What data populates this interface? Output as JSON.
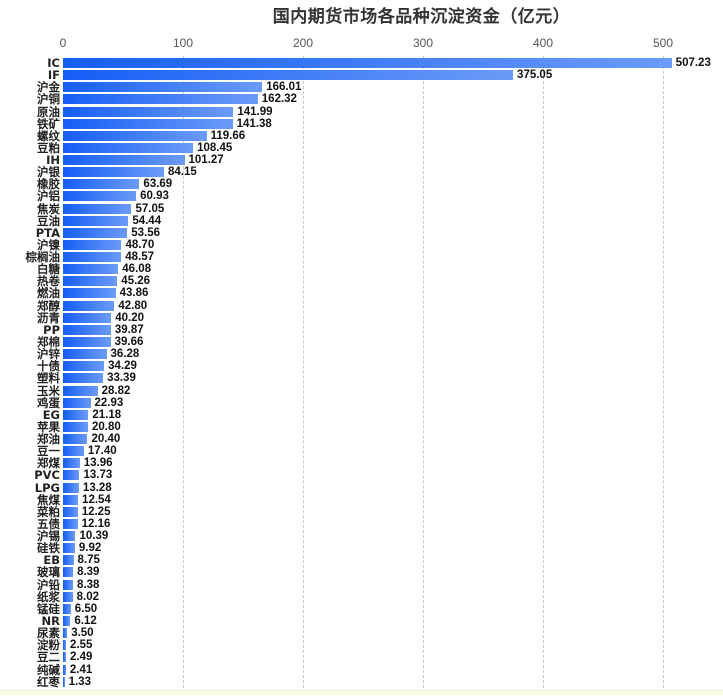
{
  "title": "国内期货市场各品种沉淀资金（亿元）",
  "axis": {
    "ticks": [
      "0",
      "100",
      "200",
      "300",
      "400",
      "500"
    ]
  },
  "chart_data": {
    "type": "bar",
    "orientation": "horizontal",
    "title": "国内期货市场各品种沉淀资金（亿元）",
    "xlabel": "",
    "ylabel": "",
    "xlim": [
      0,
      550
    ],
    "grid": true,
    "grid_style": "dashed vertical",
    "x_ticks": [
      0,
      100,
      200,
      300,
      400,
      500
    ],
    "bar_color_gradient": [
      "#155ef6",
      "#6b9bf7"
    ],
    "categories": [
      "IC",
      "IF",
      "沪金",
      "沪铜",
      "原油",
      "铁矿",
      "螺纹",
      "豆粕",
      "IH",
      "沪银",
      "橡胶",
      "沪铝",
      "焦炭",
      "豆油",
      "PTA",
      "沪镍",
      "棕榈油",
      "白糖",
      "热卷",
      "燃油",
      "郑醇",
      "沥青",
      "PP",
      "郑棉",
      "沪锌",
      "十债",
      "塑料",
      "玉米",
      "鸡蛋",
      "EG",
      "苹果",
      "郑油",
      "豆一",
      "郑煤",
      "PVC",
      "LPG",
      "焦煤",
      "菜粕",
      "五债",
      "沪锡",
      "硅铁",
      "EB",
      "玻璃",
      "沪铅",
      "纸浆",
      "锰硅",
      "NR",
      "尿素",
      "淀粉",
      "豆二",
      "纯碱",
      "红枣"
    ],
    "values": [
      507.23,
      375.05,
      166.01,
      162.32,
      141.99,
      141.38,
      119.66,
      108.45,
      101.27,
      84.15,
      63.69,
      60.93,
      57.05,
      54.44,
      53.56,
      48.7,
      48.57,
      46.08,
      45.26,
      43.86,
      42.8,
      40.2,
      39.87,
      39.66,
      36.28,
      34.29,
      33.39,
      28.82,
      22.93,
      21.18,
      20.8,
      20.4,
      17.4,
      13.96,
      13.73,
      13.28,
      12.54,
      12.25,
      12.16,
      10.39,
      9.92,
      8.75,
      8.39,
      8.38,
      8.02,
      6.5,
      6.12,
      3.5,
      2.55,
      2.49,
      2.41,
      1.33
    ],
    "value_labels": [
      "507.23",
      "375.05",
      "166.01",
      "162.32",
      "141.99",
      "141.38",
      "119.66",
      "108.45",
      "101.27",
      "84.15",
      "63.69",
      "60.93",
      "57.05",
      "54.44",
      "53.56",
      "48.70",
      "48.57",
      "46.08",
      "45.26",
      "43.86",
      "42.80",
      "40.20",
      "39.87",
      "39.66",
      "36.28",
      "34.29",
      "33.39",
      "28.82",
      "22.93",
      "21.18",
      "20.80",
      "20.40",
      "17.40",
      "13.96",
      "13.73",
      "13.28",
      "12.54",
      "12.25",
      "12.16",
      "10.39",
      "9.92",
      "8.75",
      "8.39",
      "8.38",
      "8.02",
      "6.50",
      "6.12",
      "3.50",
      "2.55",
      "2.49",
      "2.41",
      "1.33"
    ]
  }
}
